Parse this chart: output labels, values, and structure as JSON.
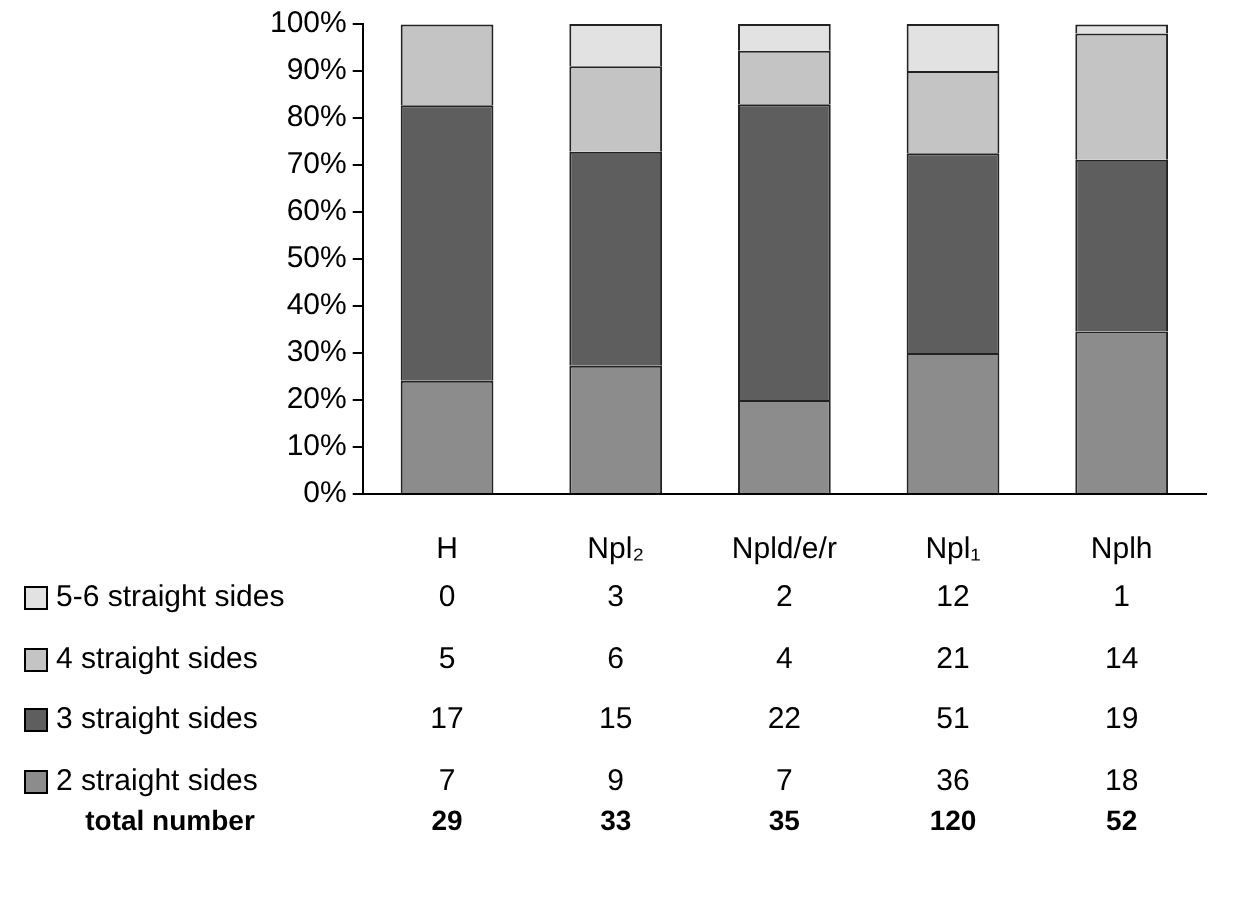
{
  "chart_data": [
    {
      "type": "bar",
      "stacked": true,
      "categories": [
        null,
        null,
        null,
        null,
        null
      ],
      "series": [
        {
          "name": "2 straight sides",
          "color": "#8c8c8c",
          "values": [
            24.1,
            27.3,
            20.0,
            30.0,
            34.6
          ]
        },
        {
          "name": "3 straight sides",
          "color": "#5e5e5e",
          "values": [
            58.6,
            45.5,
            62.9,
            42.5,
            36.5
          ]
        },
        {
          "name": "4 straight sides",
          "color": "#c4c4c4",
          "values": [
            17.2,
            18.2,
            11.4,
            17.5,
            26.9
          ]
        },
        {
          "name": "5-6 straight sides",
          "color": "#e2e2e2",
          "values": [
            0,
            9.0,
            5.7,
            10.0,
            1.9
          ]
        }
      ],
      "ylim": [
        0,
        100
      ],
      "yticks": [
        {
          "value": 0,
          "label": "0%"
        },
        {
          "value": 10,
          "label": "10%"
        },
        {
          "value": 20,
          "label": "20%"
        },
        {
          "value": 30,
          "label": "30%"
        },
        {
          "value": 40,
          "label": "40%"
        },
        {
          "value": 50,
          "label": "50%"
        },
        {
          "value": 60,
          "label": "60%"
        },
        {
          "value": 70,
          "label": "70%"
        },
        {
          "value": 80,
          "label": "80%"
        },
        {
          "value": 90,
          "label": "90%"
        },
        {
          "value": 100,
          "label": "100%"
        }
      ],
      "grid": false,
      "legend": "bottom left"
    },
    {
      "type": "other",
      "categories": [
        "H",
        "Npl₂",
        "Npld/e/r",
        "Npl₁",
        "Nplh"
      ],
      "series": [
        {
          "values": [
            0,
            3,
            2,
            12,
            1
          ]
        },
        {
          "values": [
            5,
            6,
            4,
            21,
            14
          ]
        },
        {
          "values": [
            17,
            15,
            22,
            51,
            19
          ]
        },
        {
          "values": [
            7,
            9,
            7,
            36,
            18
          ]
        },
        {
          "name": "total number",
          "values": [
            29,
            33,
            35,
            120,
            52
          ]
        }
      ],
      "data_labels": true
    }
  ]
}
